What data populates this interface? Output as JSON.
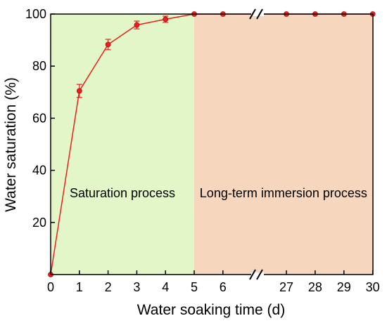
{
  "chart_data": {
    "type": "line",
    "xlabel": "Water soaking time (d)",
    "ylabel": "Water saturation (%)",
    "ylim": [
      0,
      100
    ],
    "y_ticks": [
      20,
      40,
      60,
      80,
      100
    ],
    "x_tick_labels": [
      "0",
      "1",
      "2",
      "3",
      "4",
      "5",
      "6",
      "27",
      "28",
      "29",
      "30"
    ],
    "axis_break": "between 6 and 27 on the x axis",
    "regions": [
      {
        "label": "Saturation process",
        "x_from": 0,
        "x_to": 5,
        "color": "#e2f6c7"
      },
      {
        "label": "Long-term immersion process",
        "x_from": 5,
        "x_to": 30,
        "color": "#f6d6bd"
      }
    ],
    "series": [
      {
        "color": "#e8201e",
        "marker": "circle",
        "points": [
          {
            "x": 0,
            "y": 0,
            "err": 0
          },
          {
            "x": 1,
            "y": 70.5,
            "err": 2.5
          },
          {
            "x": 2,
            "y": 88.3,
            "err": 2.0
          },
          {
            "x": 3,
            "y": 95.8,
            "err": 1.5
          },
          {
            "x": 4,
            "y": 98.0,
            "err": 1.2
          },
          {
            "x": 5,
            "y": 100,
            "err": 0
          },
          {
            "x": 6,
            "y": 100,
            "err": 0
          },
          {
            "x": 27,
            "y": 100,
            "err": 0
          },
          {
            "x": 28,
            "y": 100,
            "err": 0
          },
          {
            "x": 29,
            "y": 100,
            "err": 0
          },
          {
            "x": 30,
            "y": 100,
            "err": 0
          }
        ]
      }
    ],
    "grid": false,
    "legend": "none"
  }
}
